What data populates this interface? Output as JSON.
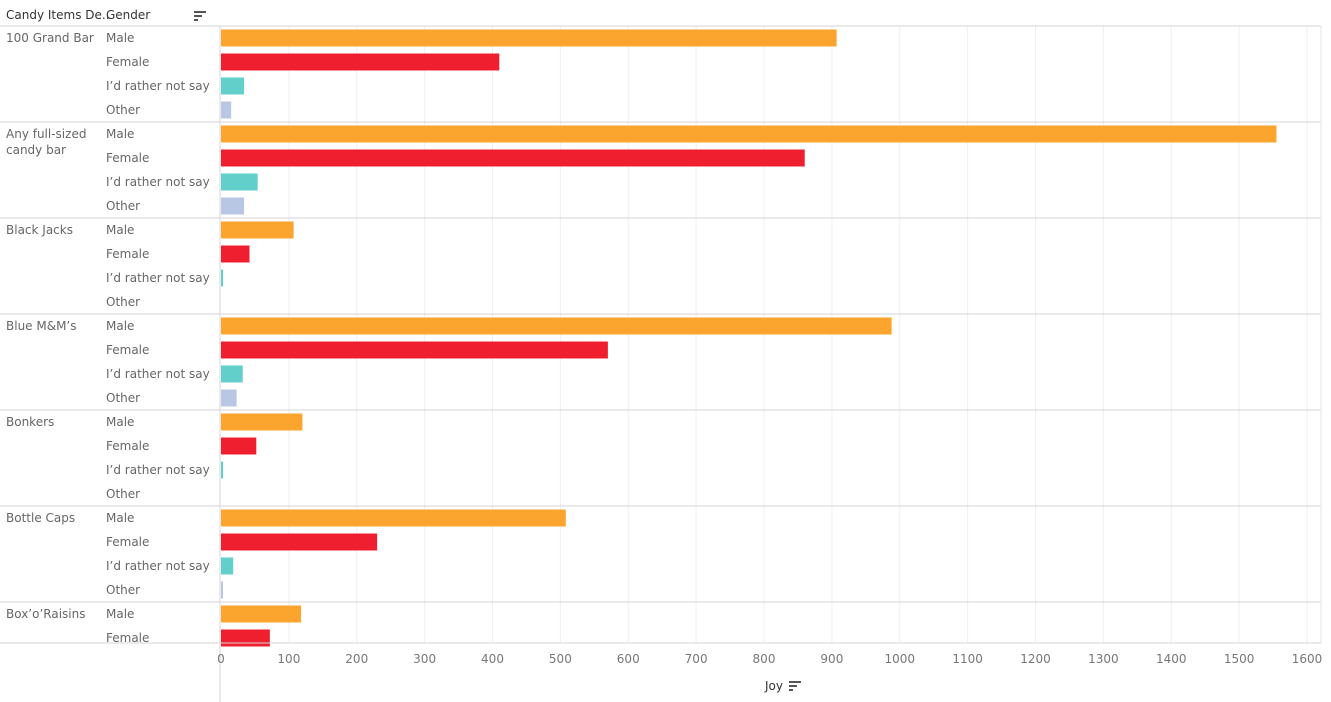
{
  "header": {
    "col1": "Candy Items De..",
    "col2": "Gender"
  },
  "chart_data": {
    "type": "bar",
    "orientation": "horizontal",
    "xlabel": "Joy",
    "xlim": [
      0,
      1600
    ],
    "xticks": [
      0,
      100,
      200,
      300,
      400,
      500,
      600,
      700,
      800,
      900,
      1000,
      1100,
      1200,
      1300,
      1400,
      1500,
      1600
    ],
    "grid": true,
    "series_colors": {
      "Male": "#FBA52F",
      "Female": "#EF1F30",
      "I'd rather not say": "#63CFCB",
      "Other": "#B8C7E3"
    },
    "groups": [
      {
        "name": "100 Grand Bar",
        "lines": [
          "100 Grand Bar"
        ],
        "bars": [
          {
            "gender": "Male",
            "value": 907
          },
          {
            "gender": "Female",
            "value": 410
          },
          {
            "gender": "I’d rather not say",
            "value": 34
          },
          {
            "gender": "Other",
            "value": 15
          }
        ]
      },
      {
        "name": "Any full-sized candy bar",
        "lines": [
          "Any full-sized",
          "candy bar"
        ],
        "bars": [
          {
            "gender": "Male",
            "value": 1555
          },
          {
            "gender": "Female",
            "value": 860
          },
          {
            "gender": "I’d rather not say",
            "value": 54
          },
          {
            "gender": "Other",
            "value": 34
          }
        ]
      },
      {
        "name": "Black Jacks",
        "lines": [
          "Black Jacks"
        ],
        "bars": [
          {
            "gender": "Male",
            "value": 107
          },
          {
            "gender": "Female",
            "value": 42
          },
          {
            "gender": "I’d rather not say",
            "value": 3
          },
          {
            "gender": "Other",
            "value": 0
          }
        ]
      },
      {
        "name": "Blue M&M's",
        "lines": [
          "Blue M&M’s"
        ],
        "bars": [
          {
            "gender": "Male",
            "value": 988
          },
          {
            "gender": "Female",
            "value": 570
          },
          {
            "gender": "I’d rather not say",
            "value": 32
          },
          {
            "gender": "Other",
            "value": 23
          }
        ]
      },
      {
        "name": "Bonkers",
        "lines": [
          "Bonkers"
        ],
        "bars": [
          {
            "gender": "Male",
            "value": 120
          },
          {
            "gender": "Female",
            "value": 52
          },
          {
            "gender": "I’d rather not say",
            "value": 3
          },
          {
            "gender": "Other",
            "value": 0
          }
        ]
      },
      {
        "name": "Bottle Caps",
        "lines": [
          "Bottle Caps"
        ],
        "bars": [
          {
            "gender": "Male",
            "value": 508
          },
          {
            "gender": "Female",
            "value": 230
          },
          {
            "gender": "I’d rather not say",
            "value": 18
          },
          {
            "gender": "Other",
            "value": 3
          }
        ]
      },
      {
        "name": "Box'o'Raisins",
        "lines": [
          "Box’o’Raisins"
        ],
        "bars": [
          {
            "gender": "Male",
            "value": 118
          },
          {
            "gender": "Female",
            "value": 72
          }
        ]
      }
    ]
  }
}
